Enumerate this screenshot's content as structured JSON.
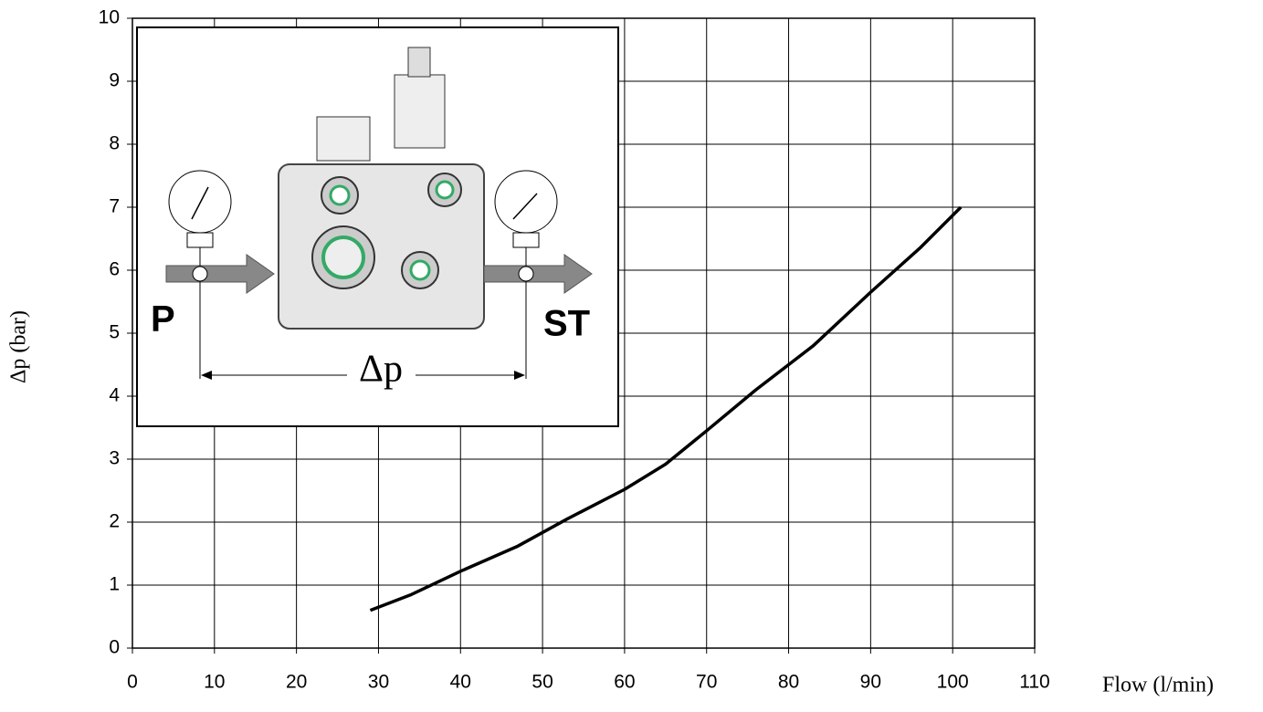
{
  "chart_data": {
    "type": "line",
    "x_label": "Flow (l/min)",
    "y_label": "Δp (bar)",
    "series": [
      {
        "color": "#000000",
        "x": [
          29,
          34,
          40,
          47,
          53,
          60,
          65,
          70,
          76,
          83,
          90,
          96,
          101
        ],
        "values": [
          0.6,
          0.85,
          1.22,
          1.62,
          2.05,
          2.52,
          2.92,
          3.45,
          4.1,
          4.8,
          5.65,
          6.35,
          7.0
        ]
      }
    ],
    "xlim": [
      0,
      110
    ],
    "xticks": [
      0,
      10,
      20,
      30,
      40,
      50,
      60,
      70,
      80,
      90,
      100,
      110
    ],
    "ylim": [
      0,
      10
    ],
    "yticks": [
      0,
      1,
      2,
      3,
      4,
      5,
      6,
      7,
      8,
      9,
      10
    ],
    "grid": true,
    "inset": {
      "inlet_label": "P",
      "outlet_label": "ST",
      "dp_label": "Δp"
    }
  }
}
